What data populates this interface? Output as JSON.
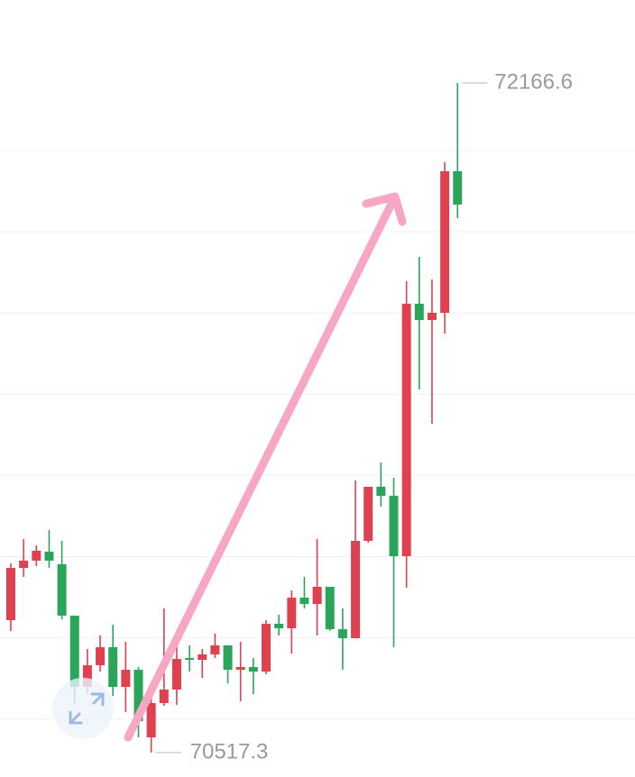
{
  "chart_data": {
    "type": "candlestick",
    "open": [
      70843.4,
      70972.2,
      70990.0,
      71012.2,
      70981.1,
      70854.5,
      70679.2,
      70732.4,
      70776.8,
      70679.2,
      70721.3,
      70554.8,
      70639.2,
      70672.5,
      70750.2,
      70745.8,
      70759.1,
      70781.3,
      70721.3,
      70728.0,
      70716.9,
      70834.6,
      70823.5,
      70898.9,
      70883.4,
      70925.6,
      70821.2,
      70799.0,
      71038.8,
      71172.0,
      71149.8,
      71001.1,
      71622.7,
      71582.7,
      71600.5,
      71949.0
    ],
    "high": [
      70983.3,
      71043.2,
      71027.7,
      71065.4,
      71038.8,
      70854.5,
      70772.4,
      70805.7,
      70832.3,
      70790.2,
      70728.0,
      70661.4,
      70872.3,
      70785.7,
      70781.3,
      70772.4,
      70810.1,
      70781.3,
      70790.2,
      70750.2,
      70843.4,
      70856.8,
      70916.7,
      70950.0,
      71043.2,
      70925.6,
      70872.3,
      71187.5,
      71172.0,
      71231.9,
      71194.2,
      71678.2,
      71738.1,
      71682.6,
      71971.2,
      72166.6
    ],
    "low": [
      70816.8,
      70950.0,
      70976.6,
      70972.2,
      70845.7,
      70639.2,
      70661.4,
      70716.9,
      70657.0,
      70617.0,
      70554.8,
      70517.3,
      70632.5,
      70634.8,
      70716.9,
      70701.4,
      70750.2,
      70688.0,
      70643.6,
      70661.4,
      70710.2,
      70805.7,
      70761.3,
      70872.3,
      70805.7,
      70816.8,
      70721.3,
      70799.0,
      71034.4,
      71123.2,
      70776.8,
      70923.4,
      71411.8,
      71327.4,
      71549.4,
      71833.6
    ],
    "close": [
      70972.2,
      70990.0,
      71014.4,
      70990.0,
      70854.5,
      70679.2,
      70732.4,
      70776.8,
      70679.2,
      70721.3,
      70594.8,
      70639.2,
      70672.5,
      70748.0,
      70745.8,
      70759.1,
      70781.3,
      70721.3,
      70728.0,
      70716.9,
      70834.6,
      70823.5,
      70898.9,
      70883.4,
      70925.6,
      70821.2,
      70799.0,
      71038.8,
      71172.0,
      71149.8,
      71001.1,
      71622.7,
      71582.7,
      71600.5,
      71949.0,
      71866.9
    ],
    "up_color": "#e0414f",
    "down_color": "#2aa55a",
    "ylim": [
      70457.2,
      72370.8
    ],
    "yticks": [
      70600,
      70800,
      71000,
      71200,
      71400,
      71600,
      71800,
      72000
    ],
    "grid": true,
    "max_label": 72166.6,
    "min_label": 70517.3
  }
}
